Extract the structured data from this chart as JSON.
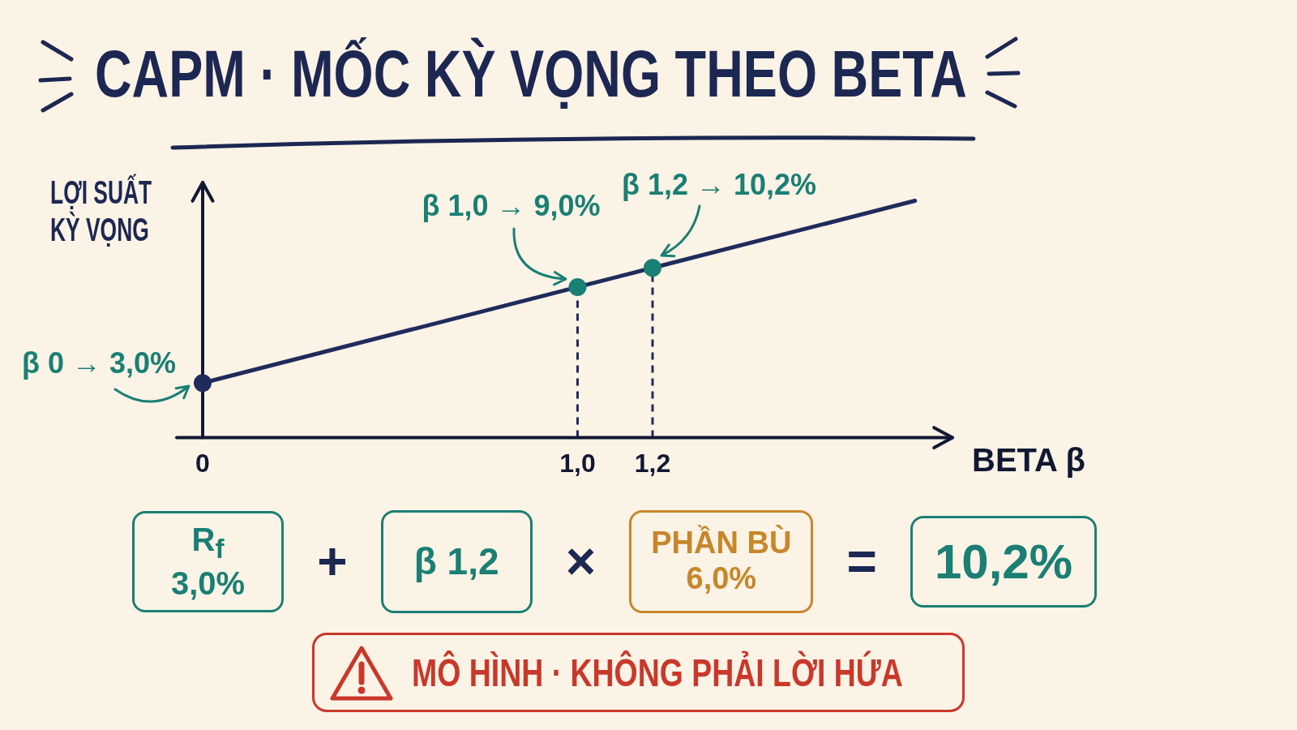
{
  "chart_data": {
    "type": "line",
    "title": "CAPM · MỐC KỲ VỌNG THEO BETA",
    "xlabel": "BETA β",
    "ylabel": "LỢI SUẤT KỲ VỌNG",
    "xlim": [
      0,
      2.0
    ],
    "xticks": [
      0,
      {
        "value": 1.0,
        "label": "1,0"
      },
      {
        "value": 1.2,
        "label": "1,2"
      }
    ],
    "tick_labels": "x",
    "series": [
      {
        "color": "#1f2b5c",
        "x": [
          0,
          1.0,
          1.2,
          1.9
        ],
        "values": [
          3.0,
          9.0,
          10.2,
          14.4
        ],
        "marker": "none"
      },
      {
        "type": "scatter",
        "colors": [
          "#1f2b5c",
          "#1a7f74",
          "#1a7f74"
        ],
        "x": [
          0,
          1.0,
          1.2
        ],
        "values": [
          3.0,
          9.0,
          10.2
        ],
        "marker": "circle",
        "value_labels": [
          "β 0 → 3,0%",
          "β 1,0 → 9,0%",
          "β 1,2 → 10,2%"
        ]
      }
    ],
    "ref_lines": [
      {
        "axis": "x",
        "value": 1.0,
        "color": "#1f2b5c",
        "line_style": "dashed"
      },
      {
        "axis": "x",
        "value": 1.2,
        "color": "#1f2b5c",
        "line_style": "dashed"
      }
    ],
    "annotations": [
      "R$_{f}$\n3,0%",
      "+",
      "β 1,2",
      "×",
      "PHẦN BÙ\n6,0%",
      "=",
      "10,2%",
      "MÔ HÌNH · KHÔNG PHẢI LỜI HỨA"
    ]
  }
}
